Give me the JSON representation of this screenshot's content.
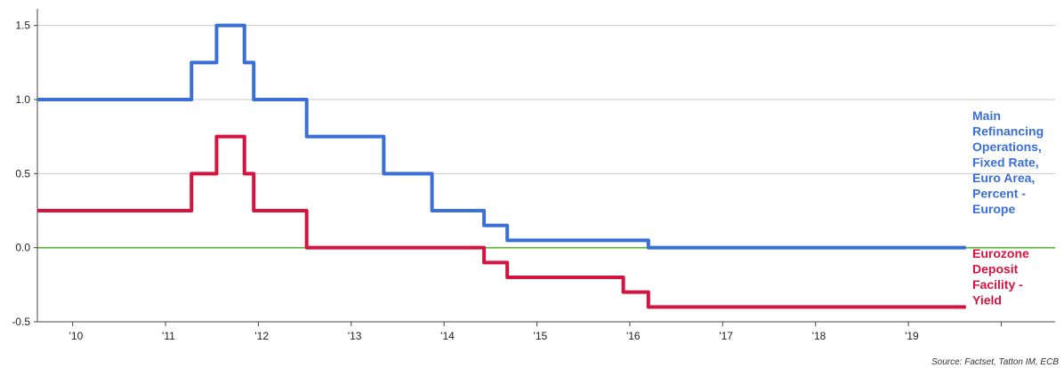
{
  "chart_data": {
    "type": "line",
    "title": "",
    "xlabel": "",
    "ylabel": "",
    "xlim": [
      2009.62,
      2020.58
    ],
    "ylim": [
      -0.5,
      1.6
    ],
    "x_ticks": [
      2010,
      2011,
      2012,
      2013,
      2014,
      2015,
      2016,
      2017,
      2018,
      2019
    ],
    "x_tick_labels": [
      "'10",
      "'11",
      "'12",
      "'13",
      "'14",
      "'15",
      "'16",
      "'17",
      "'18",
      "'19"
    ],
    "y_ticks": [
      -0.5,
      0.0,
      0.5,
      1.0,
      1.5
    ],
    "y_tick_labels": [
      "-0.5",
      "0.0",
      "0.5",
      "1.0",
      "1.5"
    ],
    "grid": "horizontal",
    "legend": "right",
    "zero_line_color": "#59b135",
    "series": [
      {
        "name": "Main Refinancing Operations, Fixed Rate, Euro Area, Percent - Europe",
        "label_lines": [
          "Main",
          "Refinancing",
          "Operations,",
          "Fixed Rate,",
          "Euro Area,",
          "Percent -",
          "Europe"
        ],
        "color": "#3a6fd8",
        "step": true,
        "x": [
          2009.62,
          2011.28,
          2011.55,
          2011.85,
          2011.95,
          2012.52,
          2013.35,
          2013.87,
          2014.43,
          2014.68,
          2016.2,
          2019.62
        ],
        "y": [
          1.0,
          1.25,
          1.5,
          1.25,
          1.0,
          0.75,
          0.5,
          0.25,
          0.15,
          0.05,
          0.0,
          0.0
        ]
      },
      {
        "name": "Eurozone Deposit Facility - Yield",
        "label_lines": [
          "Eurozone",
          "Deposit",
          "Facility -",
          "Yield"
        ],
        "color": "#d6133f",
        "step": true,
        "x": [
          2009.62,
          2011.28,
          2011.55,
          2011.85,
          2011.95,
          2012.52,
          2014.43,
          2014.68,
          2015.93,
          2016.2,
          2019.62
        ],
        "y": [
          0.25,
          0.5,
          0.75,
          0.5,
          0.25,
          0.0,
          -0.1,
          -0.2,
          -0.3,
          -0.4,
          -0.4
        ]
      }
    ]
  },
  "source": "Source: Factset, Tatton IM, ECB"
}
